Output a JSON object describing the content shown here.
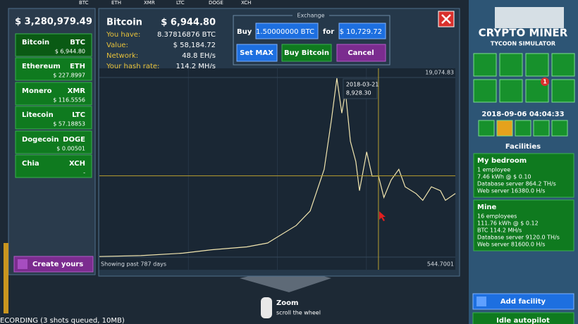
{
  "ticker": [
    "BTC",
    "ETH",
    "XMR",
    "LTC",
    "DOGE",
    "XCH"
  ],
  "balance": "$ 3,280,979.49",
  "coins": [
    {
      "name": "Bitcoin",
      "symbol": "BTC",
      "price": "$ 6,944.80"
    },
    {
      "name": "Ethereum",
      "symbol": "ETH",
      "price": "$ 227.8997"
    },
    {
      "name": "Monero",
      "symbol": "XMR",
      "price": "$ 116.5556"
    },
    {
      "name": "Litecoin",
      "symbol": "LTC",
      "price": "$ 57.18853"
    },
    {
      "name": "Dogecoin",
      "symbol": "DOGE",
      "price": "$ 0.00501"
    },
    {
      "name": "Chia",
      "symbol": "XCH",
      "price": "-"
    }
  ],
  "create_button": "Create yours",
  "dialog": {
    "coin": "Bitcoin",
    "price": "$ 6,944.80",
    "stats": [
      [
        "You have:",
        "8.37816876 BTC"
      ],
      [
        "Value:",
        "$ 58,184.72"
      ],
      [
        "Network:",
        "48.8 EH/s"
      ],
      [
        "Your hash rate:",
        "114.2 MH/s"
      ]
    ],
    "exchange": {
      "title": "Exchange",
      "buy_label": "Buy",
      "amount": "1.50000000 BTC",
      "for_label": "for",
      "cost": "$ 10,729.72",
      "buttons": [
        "Set MAX",
        "Buy Bitcoin",
        "Cancel"
      ]
    }
  },
  "price_chart": {
    "type": "line",
    "caption": "Showing past 787 days",
    "color": "#f2e6b0",
    "xlim": [
      0,
      787
    ],
    "x": [
      0,
      92,
      185,
      248,
      326,
      372,
      435,
      466,
      497,
      513,
      525,
      536,
      544,
      555,
      567,
      575,
      591,
      603,
      617,
      629,
      645,
      662,
      676,
      700,
      715,
      734,
      754,
      765,
      787
    ],
    "values": [
      600,
      700,
      950,
      1300,
      1600,
      2000,
      3800,
      5300,
      9600,
      14700,
      19000,
      15400,
      17600,
      12500,
      10400,
      7400,
      11400,
      8900,
      8930,
      6700,
      8500,
      9600,
      7800,
      7100,
      6400,
      7800,
      7400,
      6400,
      7100
    ],
    "ylim": [
      544.7001,
      19074.83
    ],
    "yticks": [
      544.7001,
      {
        "value": 19074.83,
        "label": "19,074.83"
      }
    ],
    "hover": {
      "x": 617,
      "date": "2018-03-21",
      "value": 8928.3,
      "value_label": "8,928.30"
    }
  },
  "logo": {
    "title": "CRYPTO MINER",
    "subtitle": "TYCOON SIMULATOR"
  },
  "badge": "1",
  "datetime": "2018-09-06 04:04:33",
  "facilities": {
    "title": "Facilities",
    "items": [
      {
        "name": "My bedroom",
        "lines": [
          "1 employee",
          "7.46 kWh @ $ 0.10",
          "Database server 864.2 TH/s",
          "Web server 16380.0 H/s"
        ]
      },
      {
        "name": "Mine",
        "lines": [
          "16 employees",
          "111.76 kWh @ $ 0.12",
          "BTC 114.2 MH/s",
          "Database server 9120.0 TH/s",
          "Web server 81600.0 H/s"
        ]
      }
    ],
    "add_button": "Add facility",
    "autopilot": "Idle autopilot"
  },
  "hint": {
    "title": "Zoom",
    "text": "scroll the wheel"
  },
  "recording": "ECORDING (3 shots queued, 10MB)"
}
